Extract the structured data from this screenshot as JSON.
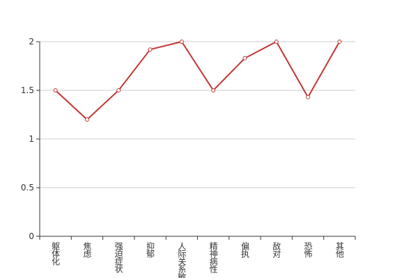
{
  "chart_data": {
    "type": "line",
    "categories": [
      "躯体化",
      "焦虑",
      "强迫症状",
      "抑郁",
      "人际关系敏感",
      "精神病性",
      "偏执",
      "敌对",
      "恐怖",
      "其他"
    ],
    "values": [
      1.5,
      1.2,
      1.5,
      1.92,
      2.0,
      1.5,
      1.83,
      2.0,
      1.43,
      2.0
    ],
    "color": "#c23531",
    "ylim": [
      0,
      2
    ],
    "yticks": [
      0,
      0.5,
      1,
      1.5,
      2
    ],
    "grid": true
  }
}
